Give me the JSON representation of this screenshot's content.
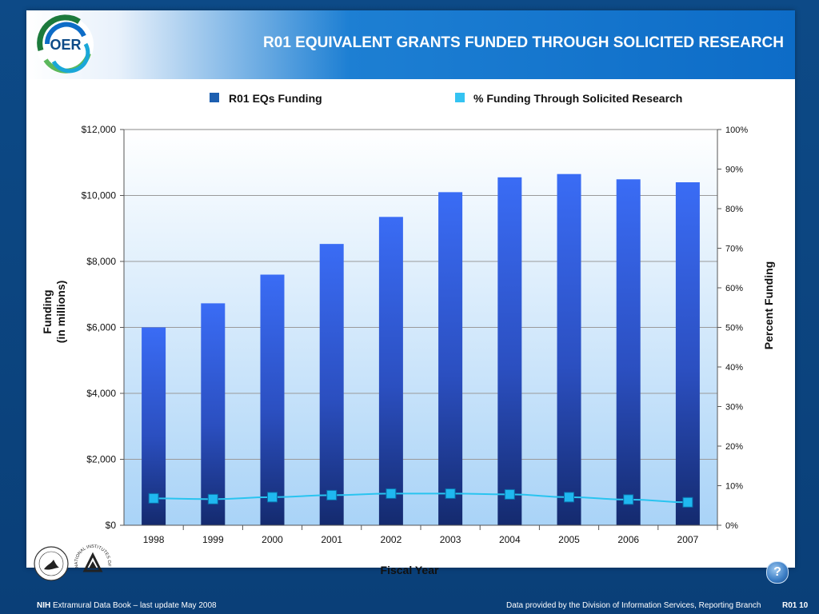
{
  "slide": {
    "title": "R01 EQUIVALENT GRANTS FUNDED THROUGH SOLICITED RESEARCH",
    "logo_text": "OER"
  },
  "footer": {
    "left_bold": "NIH",
    "left_text": " Extramural Data Book – last update May 2008",
    "right_text": "Data provided by the Division of Information Services, Reporting Branch",
    "page_number": "R01 10",
    "help_label": "?"
  },
  "seals": {
    "hhs": "hhs-seal-icon",
    "nih_text": "NATIONAL INSTITUTES OF HEALTH"
  },
  "colors": {
    "bar_top": "#3a6cf5",
    "bar_bottom": "#142a6e",
    "line": "#29c4f0",
    "marker": "#1fb8f0",
    "legend_bar": "#1d5fb0",
    "legend_line": "#34c3f2"
  },
  "chart_data": {
    "type": "bar",
    "categories": [
      "1998",
      "1999",
      "2000",
      "2001",
      "2002",
      "2003",
      "2004",
      "2005",
      "2006",
      "2007"
    ],
    "series": [
      {
        "name": "R01 EQs Funding",
        "type": "bar",
        "axis": "left",
        "values": [
          6000,
          6730,
          7600,
          8530,
          9350,
          10100,
          10550,
          10650,
          10490,
          10400
        ]
      },
      {
        "name": "% Funding Through Solicited Research",
        "type": "line",
        "axis": "right",
        "values": [
          6.8,
          6.6,
          7.1,
          7.6,
          8.0,
          8.0,
          7.8,
          7.1,
          6.5,
          5.8
        ]
      }
    ],
    "xlabel": "Fiscal Year",
    "ylabel": "Funding\n(in millions)",
    "y2label": "Percent Funding",
    "ylim": [
      0,
      12000
    ],
    "y2lim": [
      0,
      100
    ],
    "y_ticks": [
      "$0",
      "$2,000",
      "$4,000",
      "$6,000",
      "$8,000",
      "$10,000",
      "$12,000"
    ],
    "y2_ticks": [
      "0%",
      "10%",
      "20%",
      "30%",
      "40%",
      "50%",
      "60%",
      "70%",
      "80%",
      "90%",
      "100%"
    ],
    "grid": true,
    "legend_position": "top"
  }
}
